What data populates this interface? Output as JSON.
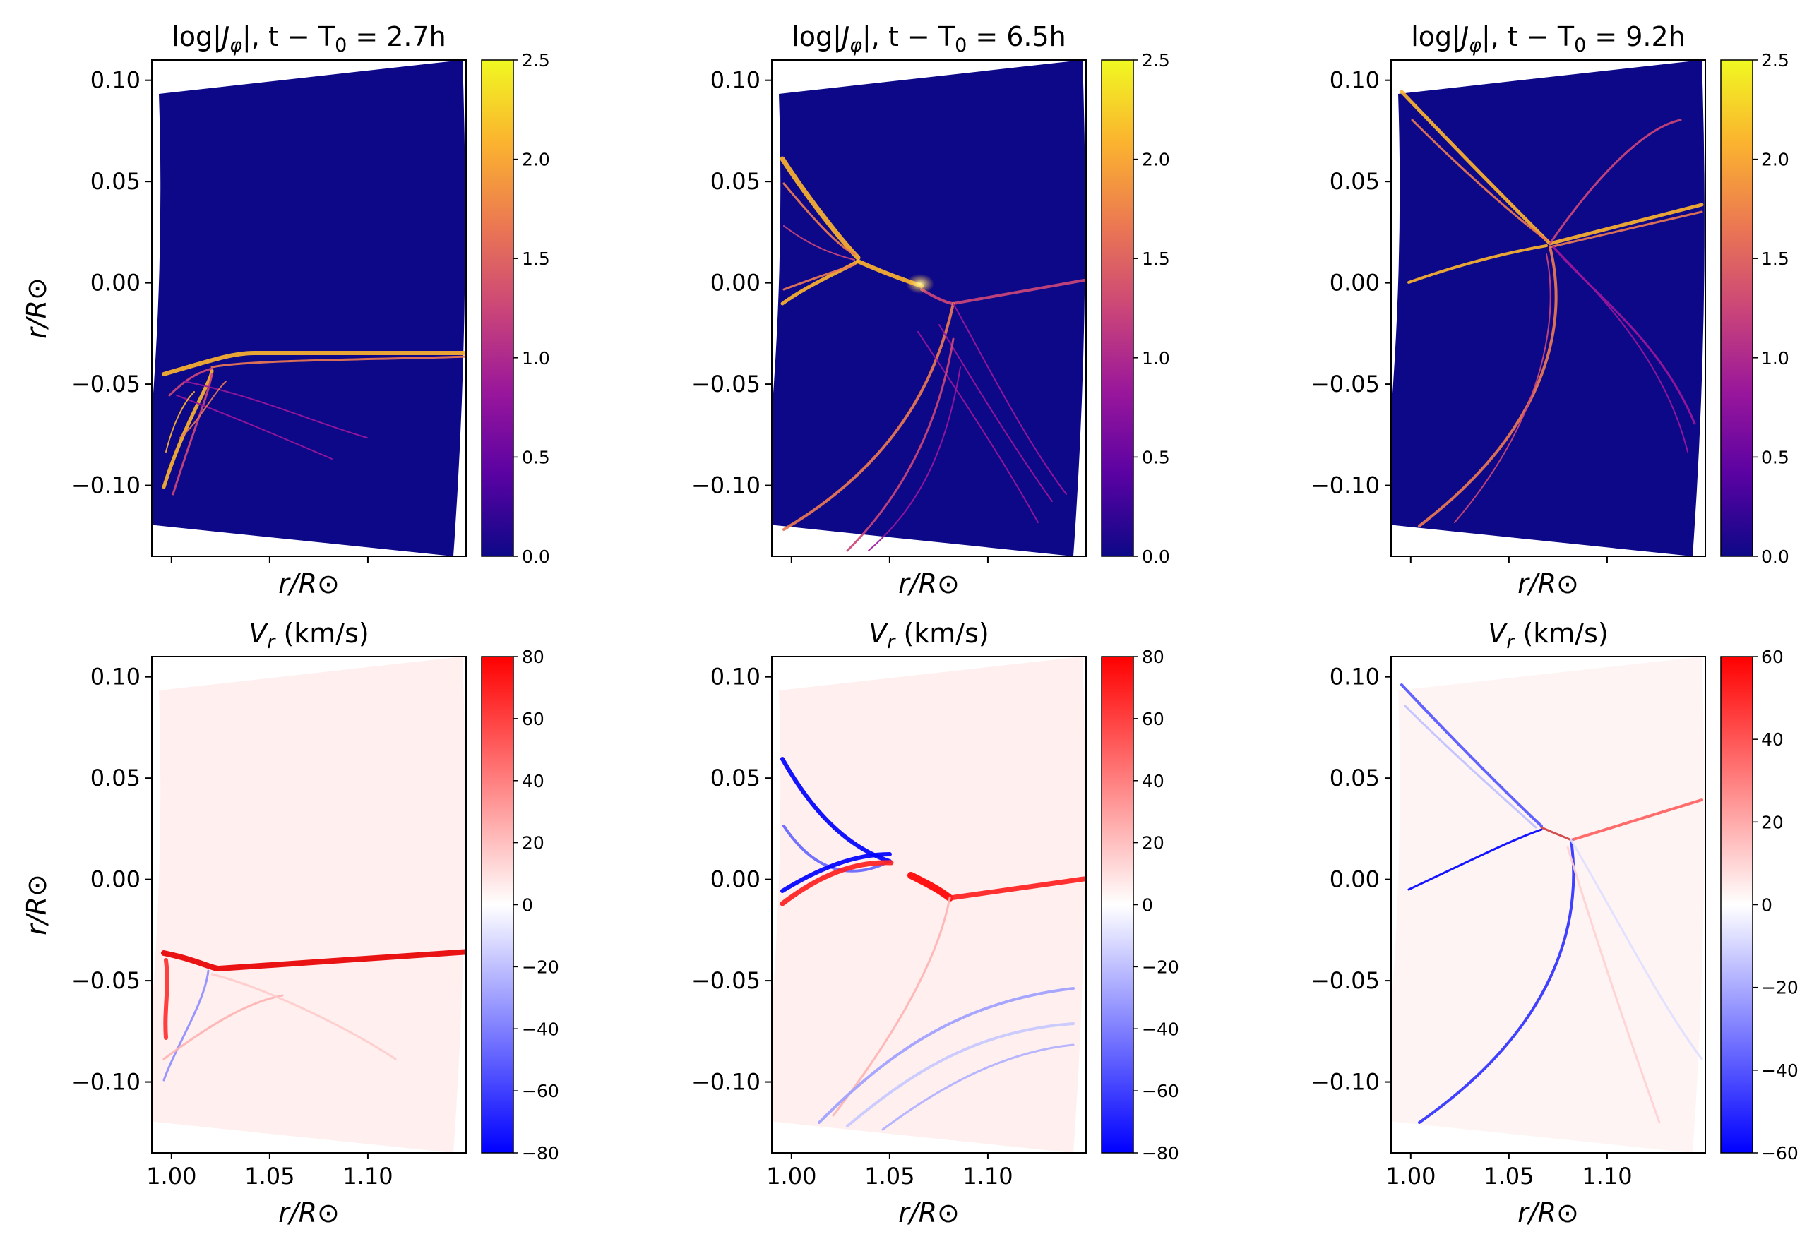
{
  "colors": {
    "plasma_stops": [
      "#0d0887",
      "#5b02a3",
      "#9a179b",
      "#cb4678",
      "#eb7852",
      "#fbb32f",
      "#f0f921"
    ],
    "bwr_stops": [
      "#0000ff",
      "#ffffff",
      "#ff0000"
    ],
    "background": "#0d0887"
  },
  "chart_data": [
    {
      "type": "heatmap",
      "panel": "top-left",
      "colormap": "plasma",
      "title": "log|Jφ|, t − T0 = 2.7h",
      "title_parts": {
        "log": "log|",
        "J": "J",
        "phi": "φ",
        "rest": "|, t − T",
        "zero": "0",
        "value": " = 2.7h"
      },
      "xlabel": "r/R⊙",
      "ylabel": "r/R⊙",
      "xlim": [
        0.99,
        1.15
      ],
      "ylim": [
        -0.135,
        0.11
      ],
      "yticks": [
        "0.10",
        "0.05",
        "0.00",
        "−0.05",
        "−0.10"
      ],
      "xticks": [],
      "colorbar_range": [
        0.0,
        2.5
      ],
      "colorbar_ticks": [
        "2.5",
        "2.0",
        "1.5",
        "1.0",
        "0.5",
        "0.0"
      ]
    },
    {
      "type": "heatmap",
      "panel": "top-middle",
      "colormap": "plasma",
      "title": "log|Jφ|, t − T0 = 6.5h",
      "title_parts": {
        "log": "log|",
        "J": "J",
        "phi": "φ",
        "rest": "|, t − T",
        "zero": "0",
        "value": " = 6.5h"
      },
      "xlabel": "r/R⊙",
      "ylabel": "",
      "xlim": [
        0.99,
        1.15
      ],
      "ylim": [
        -0.135,
        0.11
      ],
      "yticks": [
        "0.10",
        "0.05",
        "0.00",
        "−0.05",
        "−0.10"
      ],
      "xticks": [],
      "colorbar_range": [
        0.0,
        2.5
      ],
      "colorbar_ticks": [
        "2.5",
        "2.0",
        "1.5",
        "1.0",
        "0.5",
        "0.0"
      ]
    },
    {
      "type": "heatmap",
      "panel": "top-right",
      "colormap": "plasma",
      "title": "log|Jφ|, t − T0 = 9.2h",
      "title_parts": {
        "log": "log|",
        "J": "J",
        "phi": "φ",
        "rest": "|, t − T",
        "zero": "0",
        "value": " = 9.2h"
      },
      "xlabel": "r/R⊙",
      "ylabel": "",
      "xlim": [
        0.99,
        1.15
      ],
      "ylim": [
        -0.135,
        0.11
      ],
      "yticks": [
        "0.10",
        "0.05",
        "0.00",
        "−0.05",
        "−0.10"
      ],
      "xticks": [],
      "colorbar_range": [
        0.0,
        2.5
      ],
      "colorbar_ticks": [
        "2.5",
        "2.0",
        "1.5",
        "1.0",
        "0.5",
        "0.0"
      ]
    },
    {
      "type": "heatmap",
      "panel": "bottom-left",
      "colormap": "bwr",
      "title": "Vr (km/s)",
      "title_parts": {
        "V": "V",
        "sub": "r",
        "unit": " (km/s)"
      },
      "xlabel": "r/R⊙",
      "ylabel": "r/R⊙",
      "xlim": [
        0.99,
        1.15
      ],
      "ylim": [
        -0.135,
        0.11
      ],
      "yticks": [
        "0.10",
        "0.05",
        "0.00",
        "−0.05",
        "−0.10"
      ],
      "xticks": [
        "1.00",
        "1.05",
        "1.10"
      ],
      "colorbar_range": [
        -80,
        80
      ],
      "colorbar_ticks": [
        "80",
        "60",
        "40",
        "20",
        "0",
        "−20",
        "−40",
        "−60",
        "−80"
      ]
    },
    {
      "type": "heatmap",
      "panel": "bottom-middle",
      "colormap": "bwr",
      "title": "Vr (km/s)",
      "title_parts": {
        "V": "V",
        "sub": "r",
        "unit": " (km/s)"
      },
      "xlabel": "r/R⊙",
      "ylabel": "",
      "xlim": [
        0.99,
        1.15
      ],
      "ylim": [
        -0.135,
        0.11
      ],
      "yticks": [
        "0.10",
        "0.05",
        "0.00",
        "−0.05",
        "−0.10"
      ],
      "xticks": [
        "1.00",
        "1.05",
        "1.10"
      ],
      "colorbar_range": [
        -80,
        80
      ],
      "colorbar_ticks": [
        "80",
        "60",
        "40",
        "20",
        "0",
        "−20",
        "−40",
        "−60",
        "−80"
      ]
    },
    {
      "type": "heatmap",
      "panel": "bottom-right",
      "colormap": "bwr",
      "title": "Vr (km/s)",
      "title_parts": {
        "V": "V",
        "sub": "r",
        "unit": " (km/s)"
      },
      "xlabel": "r/R⊙",
      "ylabel": "",
      "xlim": [
        0.99,
        1.15
      ],
      "ylim": [
        -0.135,
        0.11
      ],
      "yticks": [
        "0.10",
        "0.05",
        "0.00",
        "−0.05",
        "−0.10"
      ],
      "xticks": [
        "1.00",
        "1.05",
        "1.10"
      ],
      "colorbar_range": [
        -60,
        60
      ],
      "colorbar_ticks": [
        "60",
        "40",
        "20",
        "0",
        "−20",
        "−40",
        "−60"
      ]
    }
  ]
}
